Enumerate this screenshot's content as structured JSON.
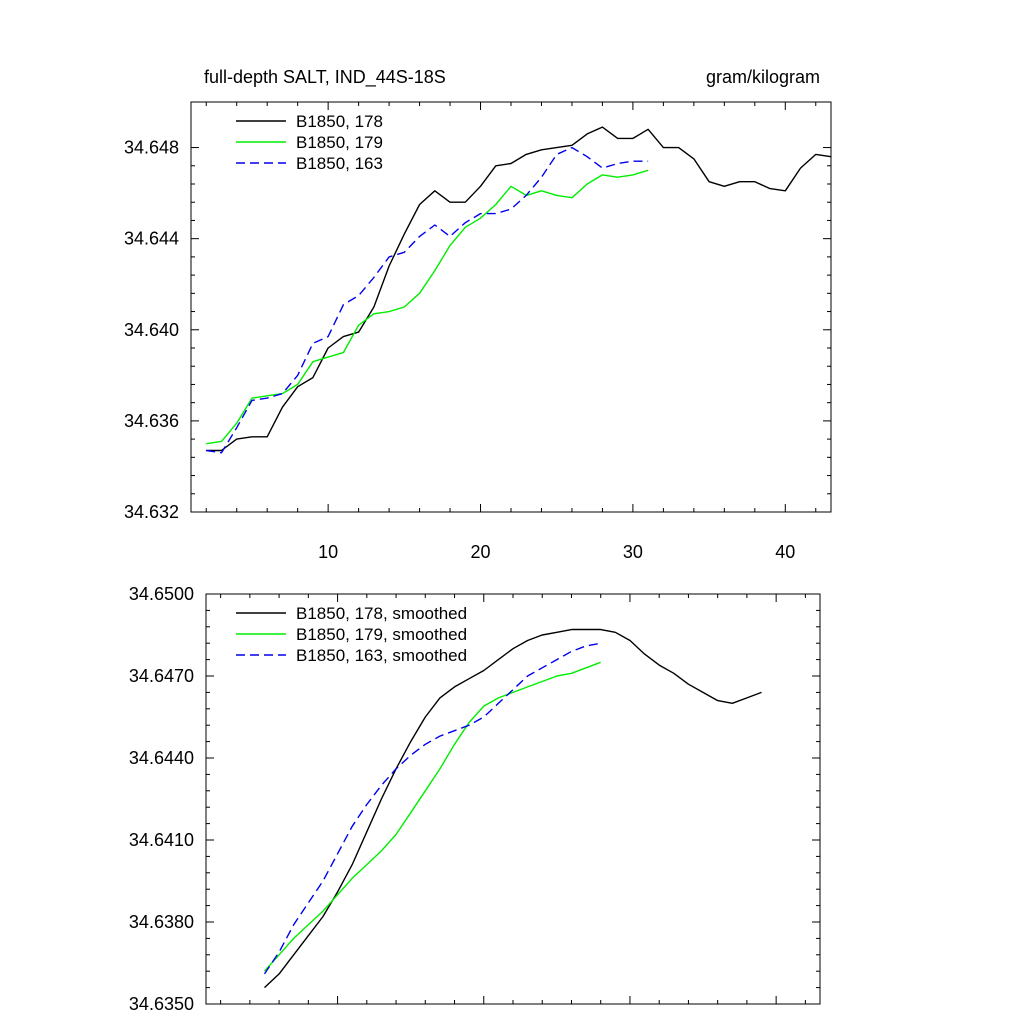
{
  "chart_data": [
    {
      "type": "line",
      "title_left": "full-depth SALT, IND_44S-18S",
      "title_right": "gram/kilogram",
      "xlim": [
        1,
        43
      ],
      "ylim": [
        34.632,
        34.65
      ],
      "xticks": [
        10,
        20,
        30,
        40
      ],
      "xtick_labels": [
        "10",
        "20",
        "30",
        "40"
      ],
      "yticks": [
        34.632,
        34.636,
        34.64,
        34.644,
        34.648
      ],
      "ytick_labels": [
        "34.632",
        "34.636",
        "34.640",
        "34.644",
        "34.648"
      ],
      "legend_position": "top-left",
      "series": [
        {
          "name": "B1850, 178",
          "color": "#000000",
          "dash": "solid",
          "x": [
            2,
            3,
            4,
            5,
            6,
            7,
            8,
            9,
            10,
            11,
            12,
            13,
            14,
            15,
            16,
            17,
            18,
            19,
            20,
            21,
            22,
            23,
            24,
            25,
            26,
            27,
            28,
            29,
            30,
            31,
            32,
            33,
            34,
            35,
            36,
            37,
            38,
            39,
            40,
            41,
            42,
            43
          ],
          "values": [
            34.6347,
            34.6347,
            34.6352,
            34.6353,
            34.6353,
            34.6366,
            34.6375,
            34.6379,
            34.6392,
            34.6397,
            34.6399,
            34.641,
            34.6428,
            34.6442,
            34.6455,
            34.6461,
            34.6456,
            34.6456,
            34.6463,
            34.6472,
            34.6473,
            34.6477,
            34.6479,
            34.648,
            34.6481,
            34.6486,
            34.6489,
            34.6484,
            34.6484,
            34.6488,
            34.648,
            34.648,
            34.6475,
            34.6465,
            34.6463,
            34.6465,
            34.6465,
            34.6462,
            34.6461,
            34.6471,
            34.6477,
            34.6476
          ]
        },
        {
          "name": "B1850, 179",
          "color": "#00ee00",
          "dash": "solid",
          "x": [
            2,
            3,
            4,
            5,
            6,
            7,
            8,
            9,
            10,
            11,
            12,
            13,
            14,
            15,
            16,
            17,
            18,
            19,
            20,
            21,
            22,
            23,
            24,
            25,
            26,
            27,
            28,
            29,
            30,
            31
          ],
          "values": [
            34.635,
            34.6351,
            34.6359,
            34.637,
            34.6371,
            34.6372,
            34.6376,
            34.6386,
            34.6388,
            34.639,
            34.6402,
            34.6407,
            34.6408,
            34.641,
            34.6416,
            34.6426,
            34.6437,
            34.6445,
            34.6449,
            34.6455,
            34.6463,
            34.6459,
            34.6461,
            34.6459,
            34.6458,
            34.6464,
            34.6468,
            34.6467,
            34.6468,
            34.647
          ]
        },
        {
          "name": "B1850, 163",
          "color": "#0000ee",
          "dash": "dashed",
          "x": [
            2,
            3,
            4,
            5,
            6,
            7,
            8,
            9,
            10,
            11,
            12,
            13,
            14,
            15,
            16,
            17,
            18,
            19,
            20,
            21,
            22,
            23,
            24,
            25,
            26,
            27,
            28,
            29,
            30,
            31
          ],
          "values": [
            34.6347,
            34.6346,
            34.6357,
            34.6369,
            34.637,
            34.6372,
            34.638,
            34.6394,
            34.6397,
            34.6411,
            34.6415,
            34.6423,
            34.6432,
            34.6434,
            34.6441,
            34.6446,
            34.6441,
            34.6447,
            34.6451,
            34.6451,
            34.6453,
            34.6459,
            34.6467,
            34.6477,
            34.648,
            34.6476,
            34.6471,
            34.6473,
            34.6474,
            34.6474
          ]
        }
      ]
    },
    {
      "type": "line",
      "xlim": [
        1,
        43
      ],
      "ylim": [
        34.635,
        34.65
      ],
      "xticks": [
        10,
        20,
        30,
        40
      ],
      "yticks": [
        34.635,
        34.638,
        34.641,
        34.644,
        34.647,
        34.65
      ],
      "ytick_labels": [
        "34.6350",
        "34.6380",
        "34.6410",
        "34.6440",
        "34.6470",
        "34.6500"
      ],
      "legend_position": "top-left",
      "series": [
        {
          "name": "B1850, 178, smoothed",
          "color": "#000000",
          "dash": "solid",
          "x": [
            5,
            6,
            7,
            8,
            9,
            10,
            11,
            12,
            13,
            14,
            15,
            16,
            17,
            18,
            19,
            20,
            21,
            22,
            23,
            24,
            25,
            26,
            27,
            28,
            29,
            30,
            31,
            32,
            33,
            34,
            35,
            36,
            37,
            38,
            39
          ],
          "values": [
            34.6356,
            34.6361,
            34.6368,
            34.6375,
            34.6382,
            34.6391,
            34.6401,
            34.6413,
            34.6425,
            34.6436,
            34.6446,
            34.6455,
            34.6462,
            34.6466,
            34.6469,
            34.6472,
            34.6476,
            34.648,
            34.6483,
            34.6485,
            34.6486,
            34.6487,
            34.6487,
            34.6487,
            34.6486,
            34.6483,
            34.6478,
            34.6474,
            34.6471,
            34.6467,
            34.6464,
            34.6461,
            34.646,
            34.6462,
            34.6464
          ]
        },
        {
          "name": "B1850, 179, smoothed",
          "color": "#00ee00",
          "dash": "solid",
          "x": [
            5,
            6,
            7,
            8,
            9,
            10,
            11,
            12,
            13,
            14,
            15,
            16,
            17,
            18,
            19,
            20,
            21,
            22,
            23,
            24,
            25,
            26,
            27,
            28
          ],
          "values": [
            34.6362,
            34.6368,
            34.6374,
            34.6379,
            34.6384,
            34.639,
            34.6396,
            34.6401,
            34.6406,
            34.6412,
            34.642,
            34.6428,
            34.6436,
            34.6445,
            34.6453,
            34.6459,
            34.6462,
            34.6464,
            34.6466,
            34.6468,
            34.647,
            34.6471,
            34.6473,
            34.6475
          ]
        },
        {
          "name": "B1850, 163, smoothed",
          "color": "#0000ee",
          "dash": "dashed",
          "x": [
            5,
            6,
            7,
            8,
            9,
            10,
            11,
            12,
            13,
            14,
            15,
            16,
            17,
            18,
            19,
            20,
            21,
            22,
            23,
            24,
            25,
            26,
            27,
            28
          ],
          "values": [
            34.6361,
            34.6369,
            34.6379,
            34.6387,
            34.6395,
            34.6405,
            34.6415,
            34.6423,
            34.643,
            34.6436,
            34.6441,
            34.6445,
            34.6448,
            34.645,
            34.6452,
            34.6455,
            34.646,
            34.6465,
            34.647,
            34.6473,
            34.6476,
            34.6479,
            34.6481,
            34.6482
          ]
        }
      ]
    }
  ]
}
